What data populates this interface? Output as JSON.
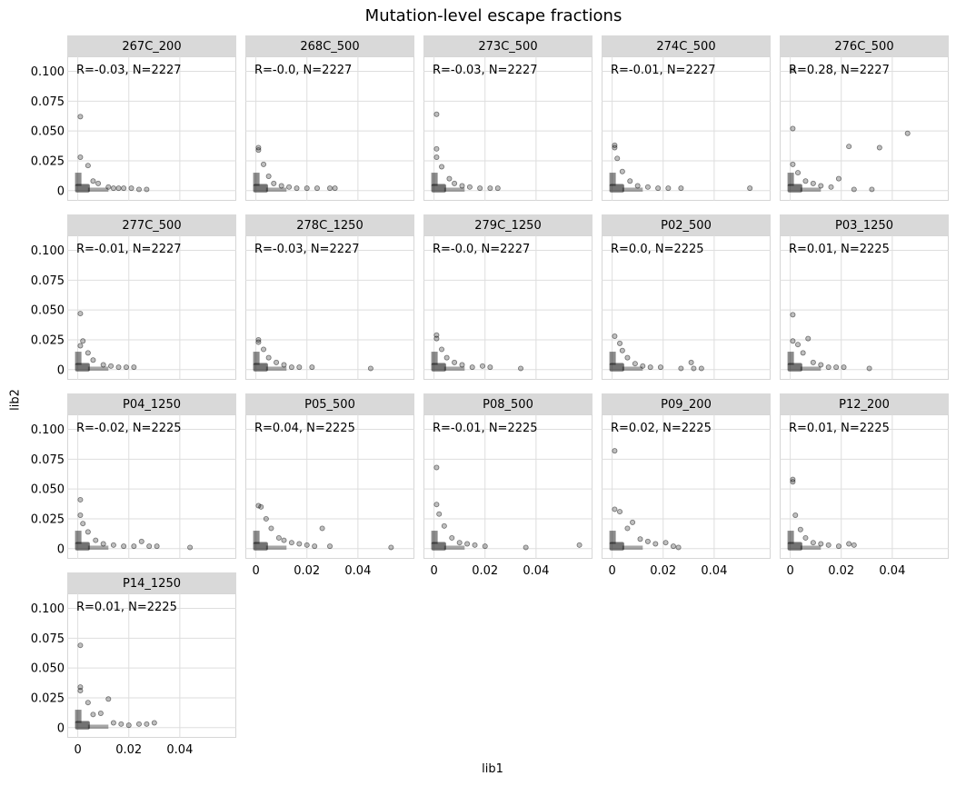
{
  "chart_data": {
    "type": "scatter",
    "title": "Mutation-level escape fractions",
    "xlabel": "lib1",
    "ylabel": "lib2",
    "xlim": [
      -0.002,
      0.06
    ],
    "ylim": [
      -0.004,
      0.108
    ],
    "xticks": [
      0,
      0.02,
      0.04
    ],
    "xtick_labels": [
      "0",
      "0.02",
      "0.04"
    ],
    "yticks": [
      0,
      0.025,
      0.05,
      0.075,
      0.1
    ],
    "ytick_labels": [
      "0",
      "0.025",
      "0.050",
      "0.075",
      "0.100"
    ],
    "grid": true,
    "point_color": "#000000",
    "point_opacity": 0.25,
    "strip_color": "#d9d9d9",
    "facets": [
      {
        "name": "267C_200",
        "annotation": "R=-0.03, N=2227",
        "points": [
          [
            0.001,
            0.062
          ],
          [
            0.001,
            0.028
          ],
          [
            0.004,
            0.021
          ],
          [
            0.006,
            0.008
          ],
          [
            0.008,
            0.006
          ],
          [
            0.012,
            0.003
          ],
          [
            0.014,
            0.002
          ],
          [
            0.016,
            0.002
          ],
          [
            0.018,
            0.002
          ],
          [
            0.021,
            0.002
          ],
          [
            0.024,
            0.001
          ],
          [
            0.027,
            0.001
          ]
        ]
      },
      {
        "name": "268C_500",
        "annotation": "R=-0.0, N=2227",
        "points": [
          [
            0.001,
            0.036
          ],
          [
            0.001,
            0.034
          ],
          [
            0.003,
            0.022
          ],
          [
            0.005,
            0.012
          ],
          [
            0.007,
            0.006
          ],
          [
            0.01,
            0.004
          ],
          [
            0.013,
            0.003
          ],
          [
            0.016,
            0.002
          ],
          [
            0.02,
            0.002
          ],
          [
            0.024,
            0.002
          ],
          [
            0.029,
            0.002
          ],
          [
            0.031,
            0.002
          ]
        ]
      },
      {
        "name": "273C_500",
        "annotation": "R=-0.03, N=2227",
        "points": [
          [
            0.001,
            0.064
          ],
          [
            0.001,
            0.035
          ],
          [
            0.001,
            0.028
          ],
          [
            0.003,
            0.02
          ],
          [
            0.006,
            0.01
          ],
          [
            0.008,
            0.006
          ],
          [
            0.011,
            0.004
          ],
          [
            0.014,
            0.003
          ],
          [
            0.018,
            0.002
          ],
          [
            0.022,
            0.002
          ],
          [
            0.025,
            0.002
          ]
        ]
      },
      {
        "name": "274C_500",
        "annotation": "R=-0.01, N=2227",
        "points": [
          [
            0.001,
            0.038
          ],
          [
            0.001,
            0.036
          ],
          [
            0.002,
            0.027
          ],
          [
            0.004,
            0.016
          ],
          [
            0.007,
            0.008
          ],
          [
            0.01,
            0.004
          ],
          [
            0.014,
            0.003
          ],
          [
            0.018,
            0.002
          ],
          [
            0.022,
            0.002
          ],
          [
            0.027,
            0.002
          ],
          [
            0.054,
            0.002
          ]
        ]
      },
      {
        "name": "276C_500",
        "annotation": "R=0.28, N=2227",
        "points": [
          [
            0.001,
            0.101
          ],
          [
            0.001,
            0.052
          ],
          [
            0.001,
            0.022
          ],
          [
            0.003,
            0.015
          ],
          [
            0.006,
            0.008
          ],
          [
            0.009,
            0.006
          ],
          [
            0.012,
            0.004
          ],
          [
            0.016,
            0.003
          ],
          [
            0.019,
            0.01
          ],
          [
            0.023,
            0.037
          ],
          [
            0.025,
            0.001
          ],
          [
            0.032,
            0.001
          ],
          [
            0.035,
            0.036
          ],
          [
            0.046,
            0.048
          ]
        ]
      },
      {
        "name": "277C_500",
        "annotation": "R=-0.01, N=2227",
        "points": [
          [
            0.001,
            0.047
          ],
          [
            0.001,
            0.02
          ],
          [
            0.002,
            0.024
          ],
          [
            0.004,
            0.014
          ],
          [
            0.006,
            0.008
          ],
          [
            0.01,
            0.004
          ],
          [
            0.013,
            0.003
          ],
          [
            0.016,
            0.002
          ],
          [
            0.019,
            0.002
          ],
          [
            0.022,
            0.002
          ]
        ]
      },
      {
        "name": "278C_1250",
        "annotation": "R=-0.03, N=2227",
        "points": [
          [
            0.001,
            0.025
          ],
          [
            0.001,
            0.023
          ],
          [
            0.003,
            0.017
          ],
          [
            0.005,
            0.01
          ],
          [
            0.008,
            0.006
          ],
          [
            0.011,
            0.004
          ],
          [
            0.014,
            0.002
          ],
          [
            0.017,
            0.002
          ],
          [
            0.022,
            0.002
          ],
          [
            0.045,
            0.001
          ]
        ]
      },
      {
        "name": "279C_1250",
        "annotation": "R=-0.0, N=2227",
        "points": [
          [
            0.001,
            0.029
          ],
          [
            0.001,
            0.026
          ],
          [
            0.003,
            0.017
          ],
          [
            0.005,
            0.01
          ],
          [
            0.008,
            0.006
          ],
          [
            0.011,
            0.004
          ],
          [
            0.015,
            0.002
          ],
          [
            0.019,
            0.003
          ],
          [
            0.022,
            0.002
          ],
          [
            0.034,
            0.001
          ]
        ]
      },
      {
        "name": "P02_500",
        "annotation": "R=0.0, N=2225",
        "points": [
          [
            0.001,
            0.028
          ],
          [
            0.003,
            0.022
          ],
          [
            0.004,
            0.016
          ],
          [
            0.006,
            0.01
          ],
          [
            0.009,
            0.005
          ],
          [
            0.012,
            0.003
          ],
          [
            0.015,
            0.002
          ],
          [
            0.019,
            0.002
          ],
          [
            0.027,
            0.001
          ],
          [
            0.031,
            0.006
          ],
          [
            0.032,
            0.001
          ],
          [
            0.035,
            0.001
          ]
        ]
      },
      {
        "name": "P03_1250",
        "annotation": "R=0.01, N=2225",
        "points": [
          [
            0.001,
            0.046
          ],
          [
            0.001,
            0.024
          ],
          [
            0.003,
            0.021
          ],
          [
            0.005,
            0.014
          ],
          [
            0.007,
            0.026
          ],
          [
            0.009,
            0.006
          ],
          [
            0.012,
            0.004
          ],
          [
            0.015,
            0.002
          ],
          [
            0.018,
            0.002
          ],
          [
            0.021,
            0.002
          ],
          [
            0.031,
            0.001
          ]
        ]
      },
      {
        "name": "P04_1250",
        "annotation": "R=-0.02, N=2225",
        "points": [
          [
            0.001,
            0.041
          ],
          [
            0.001,
            0.028
          ],
          [
            0.002,
            0.021
          ],
          [
            0.004,
            0.014
          ],
          [
            0.007,
            0.007
          ],
          [
            0.01,
            0.004
          ],
          [
            0.014,
            0.003
          ],
          [
            0.018,
            0.002
          ],
          [
            0.022,
            0.002
          ],
          [
            0.025,
            0.006
          ],
          [
            0.028,
            0.002
          ],
          [
            0.031,
            0.002
          ],
          [
            0.044,
            0.001
          ]
        ]
      },
      {
        "name": "P05_500",
        "annotation": "R=0.04, N=2225",
        "points": [
          [
            0.001,
            0.036
          ],
          [
            0.002,
            0.035
          ],
          [
            0.004,
            0.025
          ],
          [
            0.006,
            0.017
          ],
          [
            0.009,
            0.009
          ],
          [
            0.011,
            0.007
          ],
          [
            0.014,
            0.005
          ],
          [
            0.017,
            0.004
          ],
          [
            0.02,
            0.003
          ],
          [
            0.023,
            0.002
          ],
          [
            0.026,
            0.017
          ],
          [
            0.029,
            0.002
          ],
          [
            0.053,
            0.001
          ]
        ]
      },
      {
        "name": "P08_500",
        "annotation": "R=-0.01, N=2225",
        "points": [
          [
            0.001,
            0.068
          ],
          [
            0.001,
            0.037
          ],
          [
            0.002,
            0.029
          ],
          [
            0.004,
            0.019
          ],
          [
            0.007,
            0.009
          ],
          [
            0.01,
            0.005
          ],
          [
            0.013,
            0.004
          ],
          [
            0.016,
            0.003
          ],
          [
            0.02,
            0.002
          ],
          [
            0.036,
            0.001
          ],
          [
            0.057,
            0.003
          ]
        ]
      },
      {
        "name": "P09_200",
        "annotation": "R=0.02, N=2225",
        "points": [
          [
            0.001,
            0.082
          ],
          [
            0.001,
            0.033
          ],
          [
            0.003,
            0.031
          ],
          [
            0.006,
            0.017
          ],
          [
            0.008,
            0.022
          ],
          [
            0.011,
            0.008
          ],
          [
            0.014,
            0.006
          ],
          [
            0.017,
            0.004
          ],
          [
            0.021,
            0.005
          ],
          [
            0.024,
            0.002
          ],
          [
            0.026,
            0.001
          ]
        ]
      },
      {
        "name": "P12_200",
        "annotation": "R=0.01, N=2225",
        "points": [
          [
            0.001,
            0.058
          ],
          [
            0.001,
            0.056
          ],
          [
            0.002,
            0.028
          ],
          [
            0.004,
            0.016
          ],
          [
            0.006,
            0.009
          ],
          [
            0.009,
            0.005
          ],
          [
            0.012,
            0.004
          ],
          [
            0.015,
            0.003
          ],
          [
            0.019,
            0.002
          ],
          [
            0.023,
            0.004
          ],
          [
            0.025,
            0.003
          ]
        ]
      },
      {
        "name": "P14_1250",
        "annotation": "R=0.01, N=2225",
        "points": [
          [
            0.001,
            0.069
          ],
          [
            0.001,
            0.034
          ],
          [
            0.001,
            0.031
          ],
          [
            0.004,
            0.021
          ],
          [
            0.006,
            0.011
          ],
          [
            0.009,
            0.012
          ],
          [
            0.012,
            0.024
          ],
          [
            0.014,
            0.004
          ],
          [
            0.017,
            0.003
          ],
          [
            0.02,
            0.002
          ],
          [
            0.024,
            0.003
          ],
          [
            0.027,
            0.003
          ],
          [
            0.03,
            0.004
          ]
        ]
      }
    ]
  }
}
